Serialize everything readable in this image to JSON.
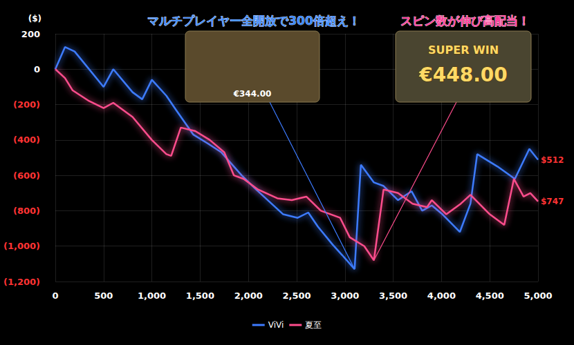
{
  "chart_data": {
    "type": "line",
    "y_label": "($)",
    "xlim": [
      0,
      5000
    ],
    "xticks": [
      0,
      500,
      {
        "value": 1000,
        "label": "1,000"
      },
      {
        "value": 1500,
        "label": "1,500"
      },
      {
        "value": 2000,
        "label": "2,000"
      },
      {
        "value": 2500,
        "label": "2,500"
      },
      {
        "value": 3000,
        "label": "3,000"
      },
      {
        "value": 3500,
        "label": "3,500"
      },
      {
        "value": 4000,
        "label": "4,000"
      },
      {
        "value": 4500,
        "label": "4,500"
      },
      {
        "value": 5000,
        "label": "5,000"
      }
    ],
    "ylim": [
      -1200,
      200
    ],
    "yticks": [
      200,
      0,
      {
        "value": -200,
        "label": "(200)"
      },
      {
        "value": -400,
        "label": "(400)"
      },
      {
        "value": -600,
        "label": "(600)"
      },
      {
        "value": -800,
        "label": "(800)"
      },
      {
        "value": -1000,
        "label": "(1,000)"
      },
      {
        "value": -1200,
        "label": "(1,200)"
      }
    ],
    "grid": true,
    "legend": "bottom",
    "series": [
      {
        "name": "ViVi",
        "color": "#3d7bff",
        "end_label": "$512",
        "x": [
          0,
          100,
          200,
          500,
          600,
          800,
          900,
          1000,
          1150,
          1250,
          1430,
          1580,
          1720,
          1930,
          2080,
          2220,
          2360,
          2510,
          2620,
          2720,
          2870,
          2970,
          3100,
          3165,
          3300,
          3400,
          3550,
          3690,
          3800,
          3900,
          4010,
          4190,
          4300,
          4370,
          4580,
          4760,
          4910,
          5000
        ],
        "values": [
          0,
          125,
          100,
          -100,
          0,
          -130,
          -170,
          -60,
          -150,
          -230,
          -370,
          -420,
          -470,
          -600,
          -680,
          -750,
          -820,
          -840,
          -810,
          -890,
          -990,
          -1050,
          -1130,
          -540,
          -640,
          -660,
          -740,
          -690,
          -800,
          -770,
          -820,
          -920,
          -760,
          -480,
          -550,
          -620,
          -450,
          -512
        ]
      },
      {
        "name": "夏至",
        "color": "#ff4d8d",
        "end_label": "$747",
        "x": [
          0,
          100,
          180,
          350,
          500,
          600,
          800,
          1000,
          1150,
          1200,
          1300,
          1450,
          1600,
          1750,
          1850,
          1950,
          2100,
          2300,
          2450,
          2600,
          2750,
          2950,
          3050,
          3200,
          3300,
          3400,
          3550,
          3700,
          3850,
          3900,
          4050,
          4200,
          4300,
          4500,
          4650,
          4750,
          4850,
          4920,
          5000
        ],
        "values": [
          0,
          -50,
          -120,
          -180,
          -220,
          -190,
          -270,
          -400,
          -480,
          -490,
          -330,
          -350,
          -400,
          -470,
          -600,
          -620,
          -680,
          -730,
          -740,
          -720,
          -800,
          -840,
          -950,
          -1000,
          -1080,
          -680,
          -700,
          -760,
          -780,
          -740,
          -820,
          -760,
          -710,
          -820,
          -880,
          -620,
          -720,
          -700,
          -747
        ]
      }
    ],
    "annotations": [
      {
        "text": "マルチプレイヤー全開放で300倍超え！",
        "color": "#3f8cff"
      },
      {
        "text": "スピン数が伸び高配当！",
        "color": "#ff3d9a"
      }
    ],
    "screenshots": [
      {
        "texts": [
          "€344.00"
        ],
        "series": "ViVi",
        "x": 3100,
        "y": -1130
      },
      {
        "texts": [
          "SUPER WIN",
          "€448.00"
        ],
        "series": "夏至",
        "x": 3300,
        "y": -1080
      }
    ]
  }
}
